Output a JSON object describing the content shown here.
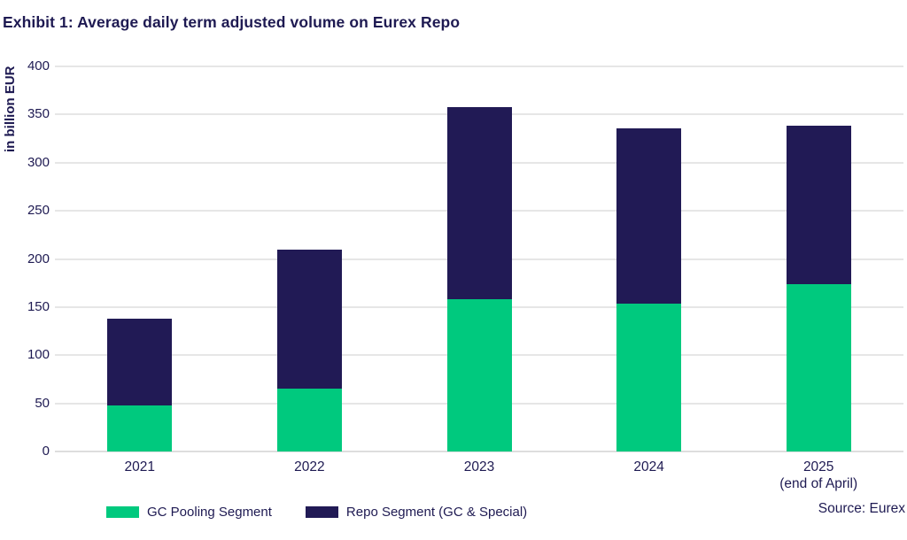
{
  "title": "Exhibit 1: Average daily term adjusted volume on Eurex Repo",
  "source": "Source: Eurex",
  "colors": {
    "navy": "#211A55",
    "green": "#00C97E",
    "grid": "#E6E6E6",
    "text": "#1E1A52"
  },
  "chart_data": {
    "type": "bar",
    "stacked": true,
    "title": "Exhibit 1: Average daily term adjusted volume on Eurex Repo",
    "xlabel": "",
    "ylabel": "in billion EUR",
    "ylim": [
      0,
      400
    ],
    "yticks": [
      0,
      50,
      100,
      150,
      200,
      250,
      300,
      350,
      400
    ],
    "grid": true,
    "legend_position": "bottom",
    "categories": [
      "2021",
      "2022",
      "2023",
      "2024",
      "2025"
    ],
    "category_sublabels": [
      "",
      "",
      "",
      "",
      "(end of April)"
    ],
    "series": [
      {
        "name": "GC Pooling Segment",
        "color_key": "green",
        "values": [
          48,
          65,
          158,
          154,
          174
        ]
      },
      {
        "name": "Repo Segment (GC & Special)",
        "color_key": "navy",
        "values": [
          90,
          145,
          200,
          182,
          164
        ]
      }
    ],
    "totals": [
      138,
      210,
      358,
      336,
      338
    ]
  }
}
